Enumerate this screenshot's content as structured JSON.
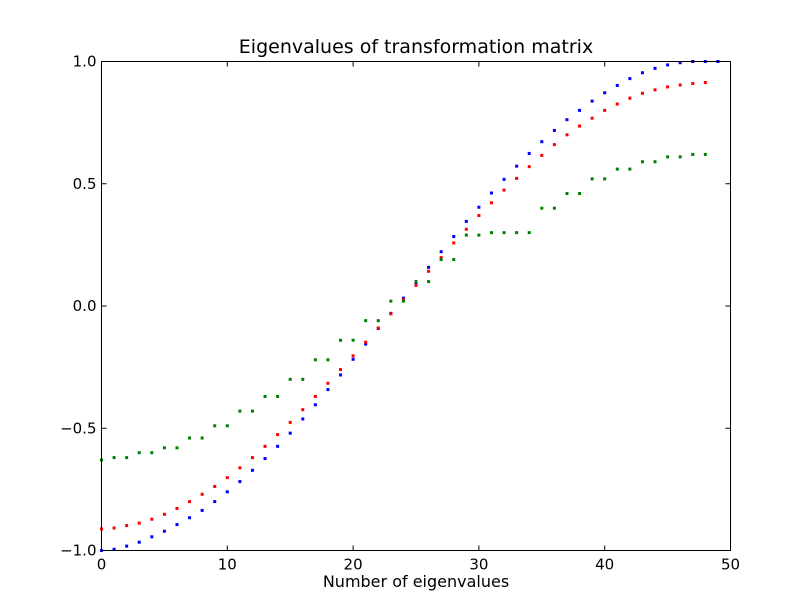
{
  "chart_data": {
    "type": "scatter",
    "title": "Eigenvalues of transformation matrix",
    "xlabel": "Number of eigenvalues",
    "ylabel": "",
    "xlim": [
      0,
      50
    ],
    "ylim": [
      -1.0,
      1.0
    ],
    "xticks": [
      0,
      10,
      20,
      30,
      40,
      50
    ],
    "xtick_labels": [
      "0",
      "10",
      "20",
      "30",
      "40",
      "50"
    ],
    "yticks": [
      -1.0,
      -0.5,
      0.0,
      0.5,
      1.0
    ],
    "ytick_labels": [
      "−1.0",
      "−0.5",
      "0.0",
      "0.5",
      "1.0"
    ],
    "grid": false,
    "legend": "none",
    "series": [
      {
        "color": "#0000ff",
        "x": [
          0,
          1,
          2,
          3,
          4,
          5,
          6,
          7,
          8,
          9,
          10,
          11,
          12,
          13,
          14,
          15,
          16,
          17,
          18,
          19,
          20,
          21,
          22,
          23,
          24,
          25,
          26,
          27,
          28,
          29,
          30,
          31,
          32,
          33,
          34,
          35,
          36,
          37,
          38,
          39,
          40,
          41,
          42,
          43,
          44,
          45,
          46,
          47,
          48,
          49
        ],
        "y": [
          -1.0,
          -0.995,
          -0.982,
          -0.966,
          -0.944,
          -0.921,
          -0.894,
          -0.866,
          -0.836,
          -0.8,
          -0.76,
          -0.718,
          -0.672,
          -0.624,
          -0.574,
          -0.52,
          -0.462,
          -0.404,
          -0.342,
          -0.282,
          -0.218,
          -0.156,
          -0.092,
          -0.03,
          0.032,
          0.096,
          0.158,
          0.222,
          0.284,
          0.346,
          0.404,
          0.462,
          0.518,
          0.572,
          0.624,
          0.672,
          0.718,
          0.762,
          0.8,
          0.838,
          0.872,
          0.902,
          0.93,
          0.954,
          0.972,
          0.986,
          0.995,
          1.0,
          1.0,
          1.0
        ]
      },
      {
        "color": "#ff0000",
        "x": [
          0,
          1,
          2,
          3,
          4,
          5,
          6,
          7,
          8,
          9,
          10,
          11,
          12,
          13,
          14,
          15,
          16,
          17,
          18,
          19,
          20,
          21,
          22,
          23,
          24,
          25,
          26,
          27,
          28,
          29,
          30,
          31,
          32,
          33,
          34,
          35,
          36,
          37,
          38,
          39,
          40,
          41,
          42,
          43,
          44,
          45,
          46,
          47,
          48
        ],
        "y": [
          -0.912,
          -0.908,
          -0.898,
          -0.888,
          -0.872,
          -0.852,
          -0.828,
          -0.8,
          -0.77,
          -0.738,
          -0.702,
          -0.662,
          -0.62,
          -0.574,
          -0.526,
          -0.476,
          -0.424,
          -0.37,
          -0.316,
          -0.26,
          -0.204,
          -0.148,
          -0.09,
          -0.032,
          0.026,
          0.084,
          0.142,
          0.198,
          0.258,
          0.314,
          0.37,
          0.422,
          0.474,
          0.522,
          0.57,
          0.616,
          0.66,
          0.7,
          0.736,
          0.768,
          0.8,
          0.826,
          0.85,
          0.87,
          0.884,
          0.896,
          0.904,
          0.91,
          0.914
        ]
      },
      {
        "color": "#008000",
        "x": [
          0,
          1,
          2,
          3,
          4,
          5,
          6,
          7,
          8,
          9,
          10,
          11,
          12,
          13,
          14,
          15,
          16,
          17,
          18,
          19,
          20,
          21,
          22,
          23,
          24,
          25,
          26,
          27,
          28,
          29,
          30,
          31,
          32,
          33,
          34,
          35,
          36,
          37,
          38,
          39,
          40,
          41,
          42,
          43,
          44,
          45,
          46,
          47,
          48
        ],
        "y": [
          -0.63,
          -0.62,
          -0.62,
          -0.6,
          -0.6,
          -0.58,
          -0.58,
          -0.54,
          -0.54,
          -0.49,
          -0.49,
          -0.43,
          -0.43,
          -0.37,
          -0.37,
          -0.3,
          -0.3,
          -0.22,
          -0.22,
          -0.14,
          -0.14,
          -0.06,
          -0.06,
          0.02,
          0.02,
          0.1,
          0.1,
          0.19,
          0.19,
          0.29,
          0.29,
          0.3,
          0.3,
          0.3,
          0.3,
          0.4,
          0.4,
          0.46,
          0.46,
          0.52,
          0.52,
          0.56,
          0.56,
          0.59,
          0.59,
          0.61,
          0.61,
          0.62,
          0.62
        ]
      }
    ]
  }
}
